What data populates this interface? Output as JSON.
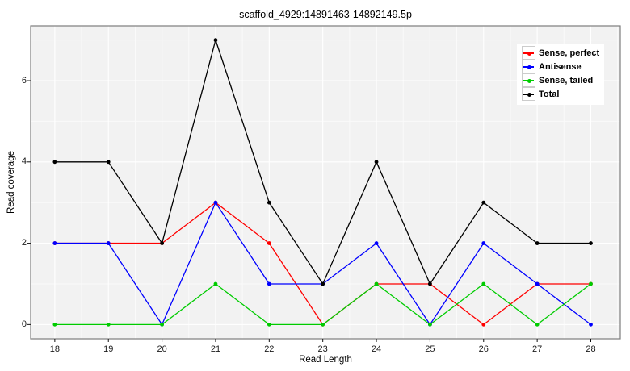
{
  "chart_data": {
    "type": "line",
    "title": "scaffold_4929:14891463-14892149.5p",
    "xlabel": "Read Length",
    "ylabel": "Read coverage",
    "x": [
      18,
      19,
      20,
      21,
      22,
      23,
      24,
      25,
      26,
      27,
      28
    ],
    "series": [
      {
        "name": "Sense, perfect",
        "color": "#ff0000",
        "values": [
          2,
          2,
          2,
          3,
          2,
          0,
          1,
          1,
          0,
          1,
          1
        ]
      },
      {
        "name": "Antisense",
        "color": "#0000ff",
        "values": [
          2,
          2,
          0,
          3,
          1,
          1,
          2,
          0,
          2,
          1,
          0
        ]
      },
      {
        "name": "Sense, tailed",
        "color": "#00cc00",
        "values": [
          0,
          0,
          0,
          1,
          0,
          0,
          1,
          0,
          1,
          0,
          1
        ]
      },
      {
        "name": "Total",
        "color": "#000000",
        "values": [
          4,
          4,
          2,
          7,
          3,
          1,
          4,
          1,
          3,
          2,
          2
        ]
      }
    ],
    "x_ticks": [
      18,
      19,
      20,
      21,
      22,
      23,
      24,
      25,
      26,
      27,
      28
    ],
    "y_ticks": [
      0,
      2,
      4,
      6
    ],
    "y_minor": [
      1,
      3,
      5,
      7
    ],
    "xlim": [
      17.55,
      28.55
    ],
    "ylim": [
      -0.35,
      7.35
    ],
    "grid": true,
    "legend_position": "top-right",
    "colors": {
      "panel_bg": "#f2f2f2",
      "grid_major": "#ffffff",
      "grid_minor": "#fafafa",
      "panel_border": "#7d7d7d",
      "tick": "#111111",
      "legend_bg": "#ffffff",
      "legend_key_border": "#cccccc"
    }
  }
}
